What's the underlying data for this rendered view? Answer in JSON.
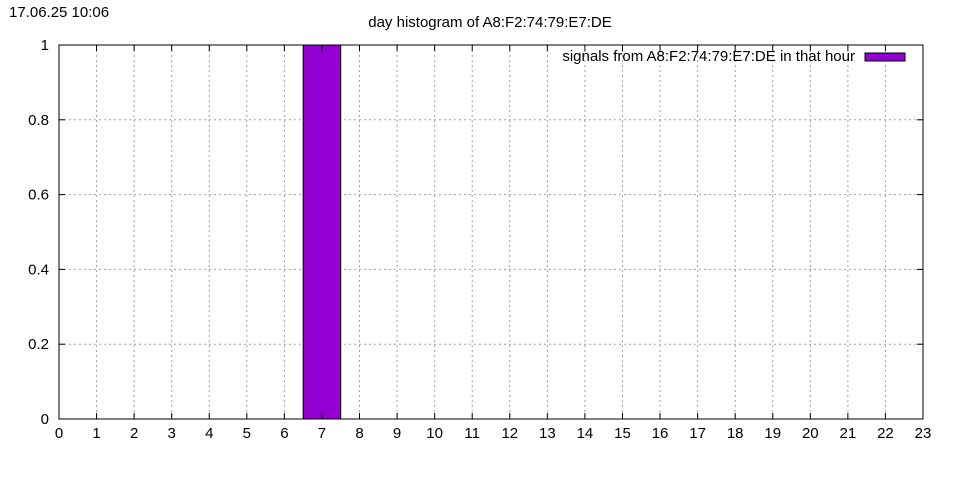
{
  "timestamp": "17.06.25 10:06",
  "chart_data": {
    "type": "bar",
    "title": "day histogram of A8:F2:74:79:E7:DE",
    "xlabel": "",
    "ylabel": "",
    "x": [
      0,
      1,
      2,
      3,
      4,
      5,
      6,
      7,
      8,
      9,
      10,
      11,
      12,
      13,
      14,
      15,
      16,
      17,
      18,
      19,
      20,
      21,
      22,
      23
    ],
    "x_ticks": [
      "0",
      "1",
      "2",
      "3",
      "4",
      "5",
      "6",
      "7",
      "8",
      "9",
      "10",
      "11",
      "12",
      "13",
      "14",
      "15",
      "16",
      "17",
      "18",
      "19",
      "20",
      "21",
      "22",
      "23"
    ],
    "y_ticks": [
      "0",
      "0.2",
      "0.4",
      "0.6",
      "0.8",
      "1"
    ],
    "y_tick_values": [
      0,
      0.2,
      0.4,
      0.6,
      0.8,
      1
    ],
    "xlim": [
      0,
      23
    ],
    "ylim": [
      0,
      1
    ],
    "grid": true,
    "legend_position": "top-right",
    "series": [
      {
        "name": "signals from A8:F2:74:79:E7:DE in that hour",
        "color": "#9400d3",
        "values": [
          0,
          0,
          0,
          0,
          0,
          0,
          0,
          1,
          0,
          0,
          0,
          0,
          0,
          0,
          0,
          0,
          0,
          0,
          0,
          0,
          0,
          0,
          0,
          0
        ]
      }
    ]
  }
}
